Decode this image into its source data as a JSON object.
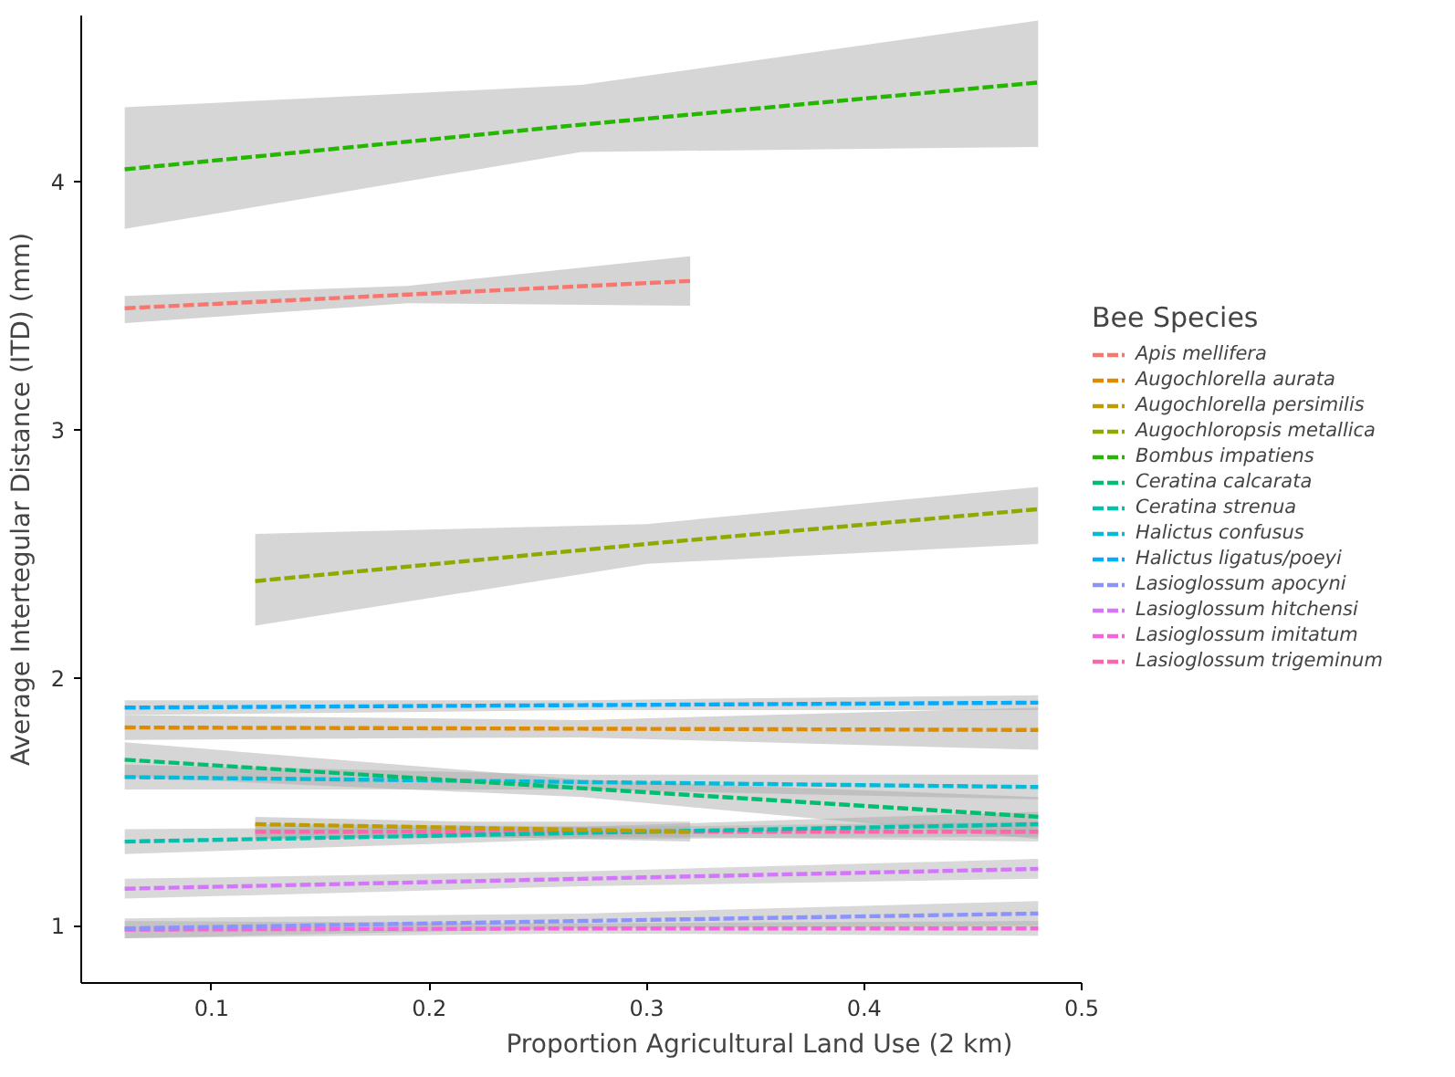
{
  "chart_data": {
    "type": "line",
    "xlabel": "Proportion Agricultural Land Use (2 km)",
    "ylabel": "Average Intertegular Distance (ITD) (mm)",
    "legend_title": "Bee Species",
    "xlim": [
      0.04,
      0.5
    ],
    "ylim": [
      0.77,
      4.67
    ],
    "xticks": [
      0.1,
      0.2,
      0.3,
      0.4,
      0.5
    ],
    "yticks": [
      1,
      2,
      3,
      4
    ],
    "grid": false,
    "legend": "right",
    "line_style": "dashed",
    "series": [
      {
        "name": "Apis mellifera",
        "color": "#F8766D",
        "x": [
          0.06,
          0.19,
          0.32
        ],
        "values": [
          3.49,
          3.545,
          3.6
        ],
        "lower": [
          3.43,
          3.51,
          3.5
        ],
        "upper": [
          3.54,
          3.58,
          3.7
        ]
      },
      {
        "name": "Augochlorella aurata",
        "color": "#E18A00",
        "x": [
          0.06,
          0.27,
          0.48
        ],
        "values": [
          1.8,
          1.795,
          1.79
        ],
        "lower": [
          1.75,
          1.76,
          1.71
        ],
        "upper": [
          1.85,
          1.83,
          1.88
        ]
      },
      {
        "name": "Augochlorella persimilis",
        "color": "#BE9C00",
        "x": [
          0.12,
          0.22,
          0.32
        ],
        "values": [
          1.41,
          1.395,
          1.38
        ],
        "lower": [
          1.35,
          1.36,
          1.34
        ],
        "upper": [
          1.44,
          1.42,
          1.42
        ]
      },
      {
        "name": "Augochloropsis metallica",
        "color": "#8CAB00",
        "x": [
          0.12,
          0.3,
          0.48
        ],
        "values": [
          2.39,
          2.54,
          2.68
        ],
        "lower": [
          2.21,
          2.46,
          2.54
        ],
        "upper": [
          2.58,
          2.62,
          2.77
        ]
      },
      {
        "name": "Bombus impatiens",
        "color": "#24B700",
        "x": [
          0.06,
          0.27,
          0.48
        ],
        "values": [
          4.05,
          4.23,
          4.4
        ],
        "lower": [
          3.81,
          4.12,
          4.14
        ],
        "upper": [
          4.3,
          4.39,
          4.65
        ]
      },
      {
        "name": "Ceratina calcarata",
        "color": "#00BE70",
        "x": [
          0.06,
          0.27,
          0.48
        ],
        "values": [
          1.67,
          1.555,
          1.44
        ],
        "lower": [
          1.6,
          1.52,
          1.35
        ],
        "upper": [
          1.74,
          1.59,
          1.52
        ]
      },
      {
        "name": "Ceratina strenua",
        "color": "#00C1AB",
        "x": [
          0.06,
          0.27,
          0.48
        ],
        "values": [
          1.34,
          1.375,
          1.41
        ],
        "lower": [
          1.29,
          1.35,
          1.36
        ],
        "upper": [
          1.39,
          1.4,
          1.46
        ]
      },
      {
        "name": "Halictus confusus",
        "color": "#00BBDA",
        "x": [
          0.06,
          0.27,
          0.48
        ],
        "values": [
          1.6,
          1.58,
          1.56
        ],
        "lower": [
          1.55,
          1.55,
          1.51
        ],
        "upper": [
          1.65,
          1.61,
          1.61
        ]
      },
      {
        "name": "Halictus ligatus/poeyi",
        "color": "#00ACFC",
        "x": [
          0.06,
          0.27,
          0.48
        ],
        "values": [
          1.88,
          1.89,
          1.9
        ],
        "lower": [
          1.85,
          1.87,
          1.87
        ],
        "upper": [
          1.91,
          1.91,
          1.93
        ]
      },
      {
        "name": "Lasioglossum apocyni",
        "color": "#8B93FF",
        "x": [
          0.06,
          0.27,
          0.48
        ],
        "values": [
          0.99,
          1.02,
          1.05
        ],
        "lower": [
          0.95,
          0.99,
          1.0
        ],
        "upper": [
          1.03,
          1.05,
          1.1
        ]
      },
      {
        "name": "Lasioglossum hitchensi",
        "color": "#D575FE",
        "x": [
          0.06,
          0.27,
          0.48
        ],
        "values": [
          1.15,
          1.19,
          1.23
        ],
        "lower": [
          1.11,
          1.16,
          1.19
        ],
        "upper": [
          1.19,
          1.22,
          1.27
        ]
      },
      {
        "name": "Lasioglossum imitatum",
        "color": "#F962DD",
        "x": [
          0.06,
          0.27,
          0.48
        ],
        "values": [
          0.985,
          0.99,
          0.99
        ],
        "lower": [
          0.95,
          0.97,
          0.96
        ],
        "upper": [
          1.02,
          1.01,
          1.02
        ]
      },
      {
        "name": "Lasioglossum trigeminum",
        "color": "#FF65AC",
        "x": [
          0.12,
          0.3,
          0.48
        ],
        "values": [
          1.38,
          1.38,
          1.38
        ],
        "lower": [
          1.35,
          1.36,
          1.34
        ],
        "upper": [
          1.41,
          1.4,
          1.42
        ]
      }
    ]
  }
}
